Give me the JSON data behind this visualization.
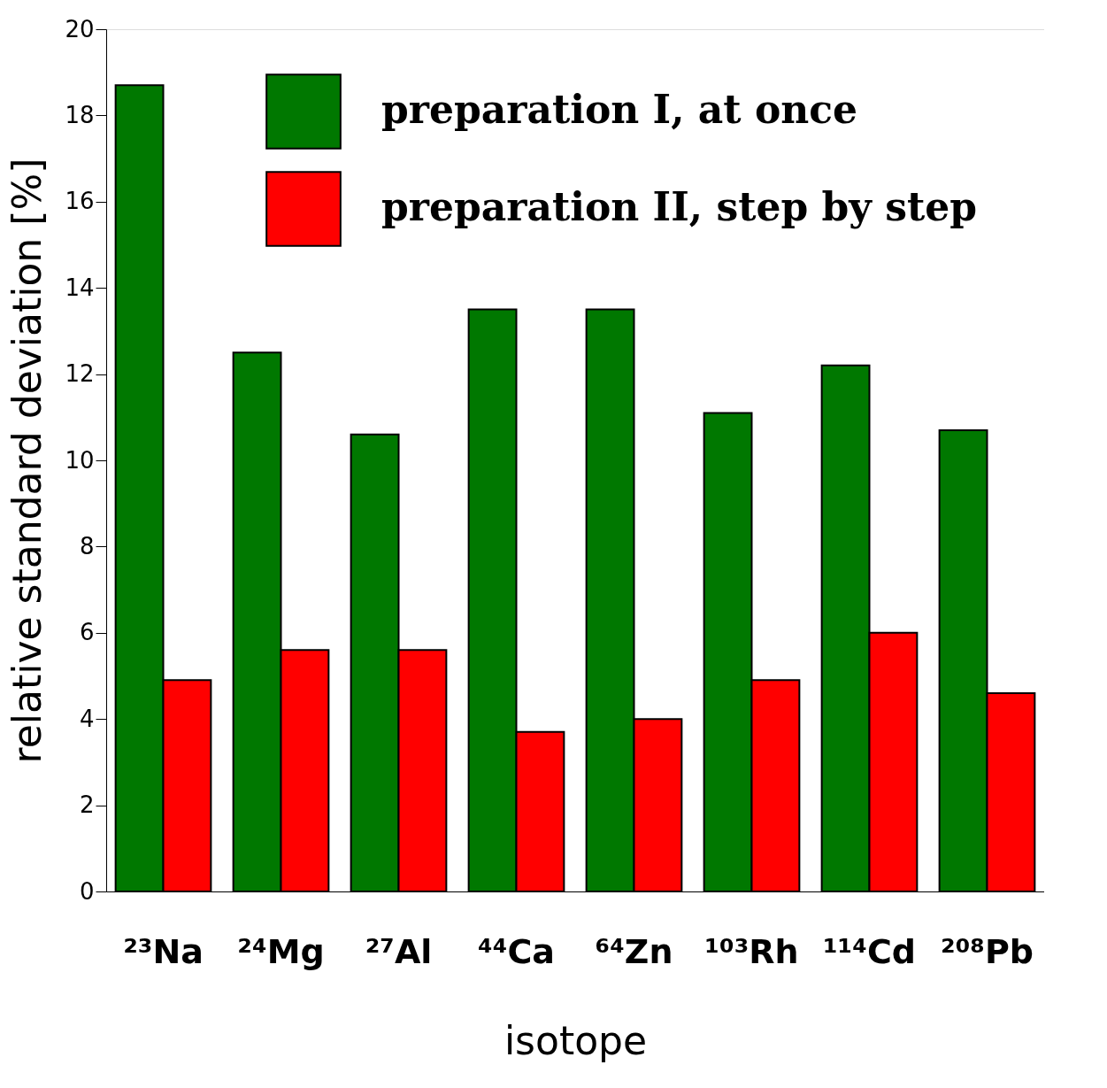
{
  "chart_data": {
    "type": "bar",
    "xlabel": "isotope",
    "ylabel": "relative standard deviation [%]",
    "categories": [
      "²³Na",
      "²⁴Mg",
      "²⁷Al",
      "⁴⁴Ca",
      "⁶⁴Zn",
      "¹⁰³Rh",
      "¹¹⁴Cd",
      "²⁰⁸Pb"
    ],
    "series": [
      {
        "name": "preparation I, at once",
        "color": "#007800",
        "values": [
          18.7,
          12.5,
          10.6,
          13.5,
          13.5,
          11.1,
          12.2,
          10.7
        ]
      },
      {
        "name": "preparation II, step by step",
        "color": "#ff0000",
        "values": [
          4.9,
          5.6,
          5.6,
          3.7,
          4.0,
          4.9,
          6.0,
          4.6
        ]
      }
    ],
    "ylim": [
      0,
      20
    ],
    "yticks": [
      0,
      2,
      4,
      6,
      8,
      10,
      12,
      14,
      16,
      18,
      20
    ],
    "grid": false,
    "legend": "top"
  }
}
